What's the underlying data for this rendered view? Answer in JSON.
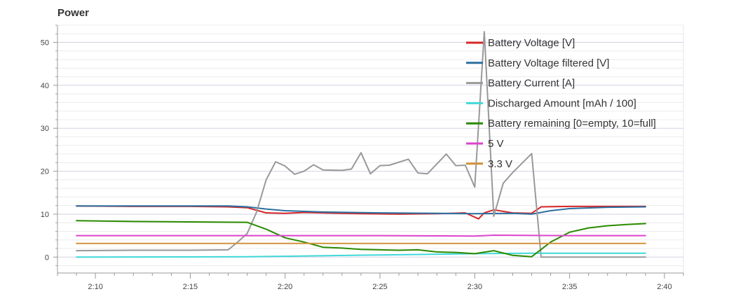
{
  "chart_data": {
    "type": "line",
    "title": "Power",
    "xlabel": "",
    "ylabel": "",
    "x_unit": "minutes",
    "xlim": [
      "2:08",
      "2:41"
    ],
    "ylim": [
      -3.7,
      54
    ],
    "x_ticks": [
      "2:10",
      "2:15",
      "2:20",
      "2:25",
      "2:30",
      "2:35",
      "2:40"
    ],
    "y_ticks": [
      0,
      10,
      20,
      30,
      40,
      50
    ],
    "grid": true,
    "legend_position": "top-right",
    "series": [
      {
        "name": "Battery Voltage [V]",
        "color": "#d62728",
        "points": [
          [
            "2:09",
            11.9
          ],
          [
            "2:12",
            11.8
          ],
          [
            "2:15",
            11.8
          ],
          [
            "2:17",
            11.7
          ],
          [
            "2:18",
            11.5
          ],
          [
            "2:19",
            10.3
          ],
          [
            "2:20",
            10.2
          ],
          [
            "2:21",
            10.4
          ],
          [
            "2:22",
            10.3
          ],
          [
            "2:24",
            10.1
          ],
          [
            "2:26",
            10.0
          ],
          [
            "2:28",
            10.1
          ],
          [
            "2:29.5",
            10.3
          ],
          [
            "2:30.2",
            8.9
          ],
          [
            "2:30.5",
            10.3
          ],
          [
            "2:31",
            11.0
          ],
          [
            "2:32",
            10.3
          ],
          [
            "2:33",
            10.2
          ],
          [
            "2:33.5",
            11.7
          ],
          [
            "2:35",
            11.8
          ],
          [
            "2:39",
            11.8
          ]
        ]
      },
      {
        "name": "Battery Voltage filtered [V]",
        "color": "#2c6f9f",
        "points": [
          [
            "2:09",
            11.9
          ],
          [
            "2:12",
            11.9
          ],
          [
            "2:15",
            11.9
          ],
          [
            "2:17",
            11.9
          ],
          [
            "2:18",
            11.7
          ],
          [
            "2:19",
            11.2
          ],
          [
            "2:20",
            10.8
          ],
          [
            "2:22",
            10.5
          ],
          [
            "2:25",
            10.3
          ],
          [
            "2:28",
            10.2
          ],
          [
            "2:30",
            10.1
          ],
          [
            "2:32",
            10.2
          ],
          [
            "2:33",
            10.0
          ],
          [
            "2:34",
            10.8
          ],
          [
            "2:35",
            11.3
          ],
          [
            "2:37",
            11.6
          ],
          [
            "2:39",
            11.7
          ]
        ]
      },
      {
        "name": "Battery Current [A]",
        "color": "#999999",
        "points": [
          [
            "2:09",
            1.5
          ],
          [
            "2:12",
            1.6
          ],
          [
            "2:15",
            1.6
          ],
          [
            "2:17",
            1.7
          ],
          [
            "2:17.5",
            3.5
          ],
          [
            "2:18",
            5.5
          ],
          [
            "2:18.5",
            10.5
          ],
          [
            "2:19",
            18.0
          ],
          [
            "2:19.5",
            22.2
          ],
          [
            "2:20",
            21.2
          ],
          [
            "2:20.5",
            19.3
          ],
          [
            "2:21",
            20.0
          ],
          [
            "2:21.5",
            21.5
          ],
          [
            "2:22",
            20.3
          ],
          [
            "2:23",
            20.2
          ],
          [
            "2:23.5",
            20.5
          ],
          [
            "2:24",
            24.3
          ],
          [
            "2:24.5",
            19.4
          ],
          [
            "2:25",
            21.3
          ],
          [
            "2:25.5",
            21.4
          ],
          [
            "2:26.5",
            22.8
          ],
          [
            "2:27",
            19.6
          ],
          [
            "2:27.5",
            19.4
          ],
          [
            "2:28",
            21.7
          ],
          [
            "2:28.5",
            24.0
          ],
          [
            "2:29",
            21.3
          ],
          [
            "2:29.5",
            21.4
          ],
          [
            "2:30",
            16.3
          ],
          [
            "2:30.5",
            52.5
          ],
          [
            "2:31",
            9.5
          ],
          [
            "2:31.5",
            17.2
          ],
          [
            "2:32",
            19.7
          ],
          [
            "2:33",
            24.1
          ],
          [
            "2:33.5",
            0.0
          ],
          [
            "2:35",
            0.0
          ],
          [
            "2:39",
            0.0
          ]
        ]
      },
      {
        "name": "Discharged Amount [mAh / 100]",
        "color": "#40d8d8",
        "points": [
          [
            "2:09",
            0.0
          ],
          [
            "2:15",
            0.05
          ],
          [
            "2:18",
            0.1
          ],
          [
            "2:20",
            0.2
          ],
          [
            "2:25",
            0.5
          ],
          [
            "2:30",
            0.8
          ],
          [
            "2:33",
            0.9
          ],
          [
            "2:39",
            0.9
          ]
        ]
      },
      {
        "name": "Battery remaining [0=empty, 10=full]",
        "color": "#2a8a00",
        "points": [
          [
            "2:09",
            8.5
          ],
          [
            "2:12",
            8.3
          ],
          [
            "2:15",
            8.2
          ],
          [
            "2:18",
            8.1
          ],
          [
            "2:19",
            6.5
          ],
          [
            "2:20",
            4.5
          ],
          [
            "2:21",
            3.5
          ],
          [
            "2:22",
            2.3
          ],
          [
            "2:23",
            2.1
          ],
          [
            "2:24",
            1.8
          ],
          [
            "2:25",
            1.7
          ],
          [
            "2:26",
            1.6
          ],
          [
            "2:27",
            1.7
          ],
          [
            "2:28",
            1.2
          ],
          [
            "2:29",
            1.1
          ],
          [
            "2:30",
            0.8
          ],
          [
            "2:31",
            1.5
          ],
          [
            "2:32",
            0.4
          ],
          [
            "2:33",
            0.1
          ],
          [
            "2:34",
            3.5
          ],
          [
            "2:35",
            5.8
          ],
          [
            "2:36",
            6.8
          ],
          [
            "2:37",
            7.3
          ],
          [
            "2:38",
            7.6
          ],
          [
            "2:39",
            7.8
          ]
        ]
      },
      {
        "name": "5 V",
        "color": "#dd44cc",
        "points": [
          [
            "2:09",
            5.0
          ],
          [
            "2:15",
            5.0
          ],
          [
            "2:20",
            5.0
          ],
          [
            "2:25",
            5.0
          ],
          [
            "2:30",
            4.9
          ],
          [
            "2:31",
            5.1
          ],
          [
            "2:35",
            5.0
          ],
          [
            "2:39",
            5.0
          ]
        ]
      },
      {
        "name": "3.3 V",
        "color": "#d2913a",
        "points": [
          [
            "2:09",
            3.2
          ],
          [
            "2:15",
            3.2
          ],
          [
            "2:20",
            3.2
          ],
          [
            "2:25",
            3.2
          ],
          [
            "2:30",
            3.2
          ],
          [
            "2:35",
            3.2
          ],
          [
            "2:39",
            3.2
          ]
        ]
      }
    ]
  }
}
